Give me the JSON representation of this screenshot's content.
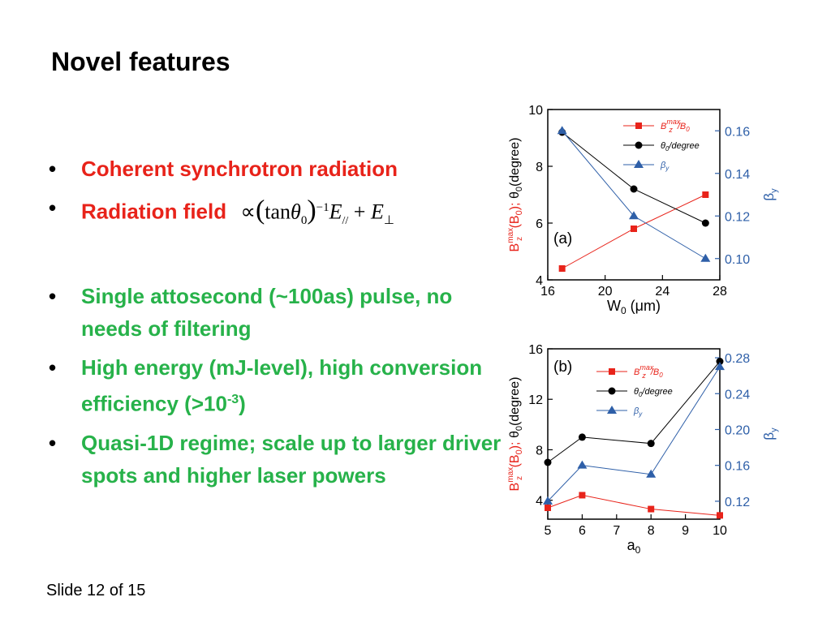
{
  "slide": {
    "title": "Novel features",
    "footer": "Slide 12 of 15"
  },
  "bullets": {
    "b1": "Coherent synchrotron radiation",
    "b2": "Radiation field",
    "formula": {
      "prop": "∝",
      "tan": "tan",
      "theta": "θ",
      "sub0": "0",
      "exp": "−1",
      "E": "E",
      "par": "//",
      "plus": "+",
      "perp": "⊥"
    },
    "b3": "Single attosecond (~100as) pulse, no needs of filtering",
    "b4_pre": "High energy (mJ-level), high conversion efficiency (>10",
    "b4_sup": "-3",
    "b4_post": ")",
    "b5": "Quasi-1D regime; scale up to larger driver spots and higher laser powers"
  },
  "colors": {
    "red": "#e8231a",
    "black": "#000000",
    "blue": "#2e5fa8"
  },
  "chart_data": [
    {
      "type": "line",
      "panel": "(a)",
      "x": [
        17,
        22,
        27
      ],
      "xlim": [
        16,
        28
      ],
      "xticks": [
        "16",
        "20",
        "24",
        "28"
      ],
      "xlabel": {
        "main": "W",
        "sub": "0",
        "rest": " (μm)"
      },
      "ylim": [
        4,
        10
      ],
      "yticks": [
        "4",
        "6",
        "8",
        "10"
      ],
      "ylabel": {
        "b": "B",
        "sup": "max",
        "sub": "z",
        "mid": " (B",
        "sub0": "0",
        "end": ");",
        "theta": "θ",
        "tsub": "0",
        "tend": "(degree)"
      },
      "y2lim": [
        0.09,
        0.17
      ],
      "y2ticks": [
        "0.10",
        "0.12",
        "0.14",
        "0.16"
      ],
      "y2label": {
        "main": "β",
        "sub": "y"
      },
      "legend": [
        {
          "name": "B",
          "sup": "max",
          "sub": "z",
          "rest": "/B",
          "rest_sub": "0"
        },
        {
          "name": "θ",
          "sub": "0",
          "rest": "/degree"
        },
        {
          "name": "β",
          "sub": "y"
        }
      ],
      "series": [
        {
          "name": "Bz_max/B0",
          "marker": "square",
          "color": "#e8231a",
          "axis": "left",
          "values": [
            4.4,
            5.8,
            7.0
          ]
        },
        {
          "name": "theta0/degree",
          "marker": "circle",
          "color": "#000000",
          "axis": "left",
          "values": [
            9.2,
            7.2,
            6.0
          ]
        },
        {
          "name": "beta_y",
          "marker": "triangle",
          "color": "#2e5fa8",
          "axis": "right",
          "values": [
            0.16,
            0.12,
            0.1
          ]
        }
      ]
    },
    {
      "type": "line",
      "panel": "(b)",
      "x": [
        5,
        6,
        8,
        10
      ],
      "xlim": [
        5,
        10
      ],
      "xticks": [
        "5",
        "6",
        "7",
        "8",
        "9",
        "10"
      ],
      "xlabel": {
        "main": "a",
        "sub": "0",
        "rest": ""
      },
      "ylim": [
        2.5,
        16
      ],
      "yticks": [
        "4",
        "8",
        "12",
        "16"
      ],
      "ylabel": {
        "b": "B",
        "sup": "max",
        "sub": "z",
        "mid": " (B",
        "sub0": "0",
        "end": ");",
        "theta": "θ",
        "tsub": "0",
        "tend": "(degree)"
      },
      "y2lim": [
        0.1,
        0.29
      ],
      "y2ticks": [
        "0.12",
        "0.16",
        "0.20",
        "0.24",
        "0.28"
      ],
      "y2label": {
        "main": "β",
        "sub": "y"
      },
      "legend": [
        {
          "name": "B",
          "sup": "max",
          "sub": "z",
          "rest": "/B",
          "rest_sub": "0"
        },
        {
          "name": "θ",
          "sub": "0",
          "rest": "/degree"
        },
        {
          "name": "β",
          "sub": "y"
        }
      ],
      "series": [
        {
          "name": "Bz_max/B0",
          "marker": "square",
          "color": "#e8231a",
          "axis": "left",
          "values": [
            3.4,
            4.4,
            3.3,
            2.8
          ]
        },
        {
          "name": "theta0/degree",
          "marker": "circle",
          "color": "#000000",
          "axis": "left",
          "values": [
            7.0,
            9.0,
            8.5,
            15.0
          ]
        },
        {
          "name": "beta_y",
          "marker": "triangle",
          "color": "#2e5fa8",
          "axis": "right",
          "values": [
            0.12,
            0.16,
            0.15,
            0.27
          ]
        }
      ]
    }
  ]
}
